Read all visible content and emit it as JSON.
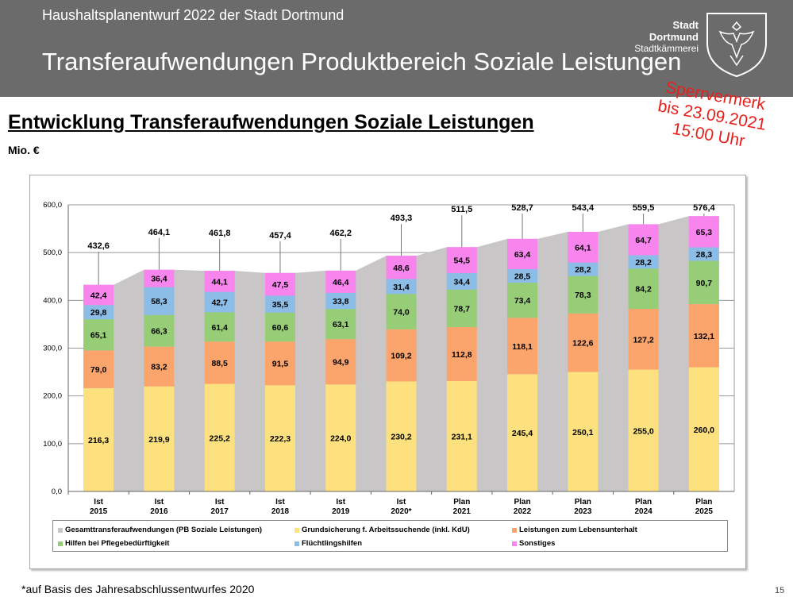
{
  "header": {
    "subtitle": "Haushaltsplanentwurf 2022 der Stadt Dortmund",
    "title": "Transferaufwendungen Produktbereich Soziale Leistungen",
    "brand_line1": "Stadt Dortmund",
    "brand_line2": "Stadtkämmerei",
    "logo": "eagle-coat-of-arms"
  },
  "heading": "Entwicklung Transferaufwendungen Soziale Leistungen",
  "unit": "Mio. €",
  "stamp": {
    "line1": "Sperrvermerk",
    "line2": "bis 23.09.2021",
    "line3": "15:00 Uhr",
    "color": "#e8201c"
  },
  "footnote": "*auf Basis des Jahresabschlussentwurfes 2020",
  "page_number": "15",
  "chart_data": {
    "type": "bar",
    "stacked": true,
    "categories": [
      "Ist 2015",
      "Ist 2016",
      "Ist 2017",
      "Ist 2018",
      "Ist 2019",
      "Ist 2020*",
      "Plan 2021",
      "Plan 2022",
      "Plan 2023",
      "Plan 2024",
      "Plan 2025"
    ],
    "ylim": [
      0,
      600
    ],
    "yticks": [
      "0,0",
      "100,0",
      "200,0",
      "300,0",
      "400,0",
      "500,0",
      "600,0"
    ],
    "grid": true,
    "legend_position": "bottom",
    "totals_series": {
      "name": "Gesamttransferaufwendungen (PB Soziale Leistungen)",
      "type": "area",
      "color": "#c8c6c6",
      "values": [
        "432,6",
        "464,1",
        "461,8",
        "457,4",
        "462,2",
        "493,3",
        "511,5",
        "528,7",
        "543,4",
        "559,5",
        "576,4"
      ]
    },
    "series": [
      {
        "name": "Grundsicherung f. Arbeitssuchende (inkl. KdU)",
        "color": "#fde17e",
        "values": [
          "216,3",
          "219,9",
          "225,2",
          "222,3",
          "224,0",
          "230,2",
          "231,1",
          "245,4",
          "250,1",
          "255,0",
          "260,0"
        ]
      },
      {
        "name": "Leistungen zum Lebensunterhalt",
        "color": "#fba46c",
        "values": [
          "79,0",
          "83,2",
          "88,5",
          "91,5",
          "94,9",
          "109,2",
          "112,8",
          "118,1",
          "122,6",
          "127,2",
          "132,1"
        ]
      },
      {
        "name": "Hilfen bei Pflegebedürftigkeit",
        "color": "#98cd78",
        "values": [
          "65,1",
          "66,3",
          "61,4",
          "60,6",
          "63,1",
          "74,0",
          "78,7",
          "73,4",
          "78,3",
          "84,2",
          "90,7"
        ]
      },
      {
        "name": "Flüchtlingshilfen",
        "color": "#8cbde6",
        "values": [
          "29,8",
          "58,3",
          "42,7",
          "35,5",
          "33,8",
          "31,4",
          "34,4",
          "28,5",
          "28,2",
          "28,2",
          "28,3"
        ]
      },
      {
        "name": "Sonstiges",
        "color": "#f884ee",
        "values": [
          "42,4",
          "36,4",
          "44,1",
          "47,5",
          "46,4",
          "48,6",
          "54,5",
          "63,4",
          "64,1",
          "64,7",
          "65,3"
        ]
      }
    ]
  }
}
